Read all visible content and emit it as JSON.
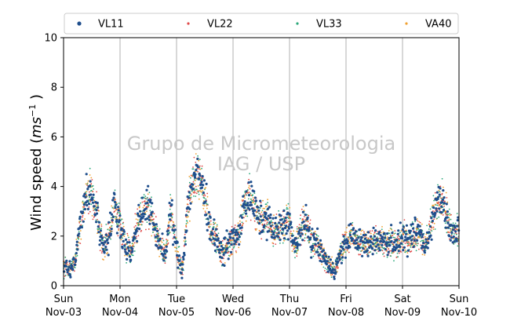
{
  "chart_data": {
    "type": "scatter",
    "ylabel": "Wind speed (ms⁻¹ )",
    "ylabel_main": "Wind speed (",
    "ylabel_unit": "ms",
    "ylabel_exp": "−1",
    "ylabel_end": " )",
    "ylim": [
      0,
      10
    ],
    "yticks": [
      "0",
      "2",
      "4",
      "6",
      "8",
      "10"
    ],
    "xlim": [
      "2024-11-03",
      "2024-11-10"
    ],
    "xticks": [
      {
        "day": "Sun",
        "date": "Nov-03"
      },
      {
        "day": "Mon",
        "date": "Nov-04"
      },
      {
        "day": "Tue",
        "date": "Nov-05"
      },
      {
        "day": "Wed",
        "date": "Nov-06"
      },
      {
        "day": "Thu",
        "date": "Nov-07"
      },
      {
        "day": "Fri",
        "date": "Nov-08"
      },
      {
        "day": "Sat",
        "date": "Nov-09"
      },
      {
        "day": "Sun",
        "date": "Nov-10"
      }
    ],
    "grid": "vertical",
    "legend_placement": "top",
    "watermark_line1": "Grupo de Micrometeorologia",
    "watermark_line2": "IAG / USP",
    "series": [
      {
        "name": "VL11",
        "color": "#1f4e8c",
        "marker": "dot-large"
      },
      {
        "name": "VL22",
        "color": "#e04a4a",
        "marker": "dot-small"
      },
      {
        "name": "VL33",
        "color": "#2ca87a",
        "marker": "dot-small"
      },
      {
        "name": "VA40",
        "color": "#f0a030",
        "marker": "dot-small"
      }
    ],
    "trend_days": [
      0,
      0.1,
      0.2,
      0.3,
      0.4,
      0.5,
      0.6,
      0.7,
      0.8,
      0.9,
      1.0,
      1.1,
      1.2,
      1.3,
      1.4,
      1.5,
      1.6,
      1.7,
      1.8,
      1.9,
      2.0,
      2.1,
      2.2,
      2.3,
      2.4,
      2.5,
      2.6,
      2.7,
      2.8,
      2.9,
      3.0,
      3.1,
      3.2,
      3.3,
      3.4,
      3.5,
      3.6,
      3.7,
      3.8,
      3.9,
      4.0,
      4.1,
      4.2,
      4.3,
      4.4,
      4.5,
      4.6,
      4.7,
      4.8,
      4.9,
      5.0,
      5.1,
      5.2,
      5.3,
      5.4,
      5.5,
      5.6,
      5.7,
      5.8,
      5.9,
      6.0,
      6.1,
      6.2,
      6.3,
      6.4,
      6.5,
      6.6,
      6.7,
      6.8,
      6.9,
      7.0
    ],
    "trend_speed": [
      0.8,
      0.6,
      0.9,
      2.5,
      3.6,
      3.7,
      2.8,
      1.5,
      2.0,
      3.2,
      2.6,
      1.5,
      1.3,
      2.5,
      3.0,
      3.3,
      2.4,
      1.7,
      1.2,
      3.0,
      1.5,
      0.6,
      3.2,
      4.4,
      4.6,
      3.5,
      2.3,
      2.0,
      1.2,
      1.7,
      1.9,
      2.0,
      3.3,
      3.6,
      3.0,
      2.6,
      2.8,
      2.2,
      2.3,
      2.5,
      2.6,
      1.4,
      2.3,
      2.5,
      1.8,
      1.6,
      1.2,
      0.8,
      0.6,
      1.3,
      1.7,
      2.0,
      1.8,
      1.7,
      1.6,
      1.8,
      1.9,
      1.7,
      1.9,
      1.6,
      2.0,
      1.7,
      2.0,
      2.2,
      1.5,
      2.4,
      3.3,
      3.6,
      2.6,
      2.2,
      2.1
    ]
  }
}
